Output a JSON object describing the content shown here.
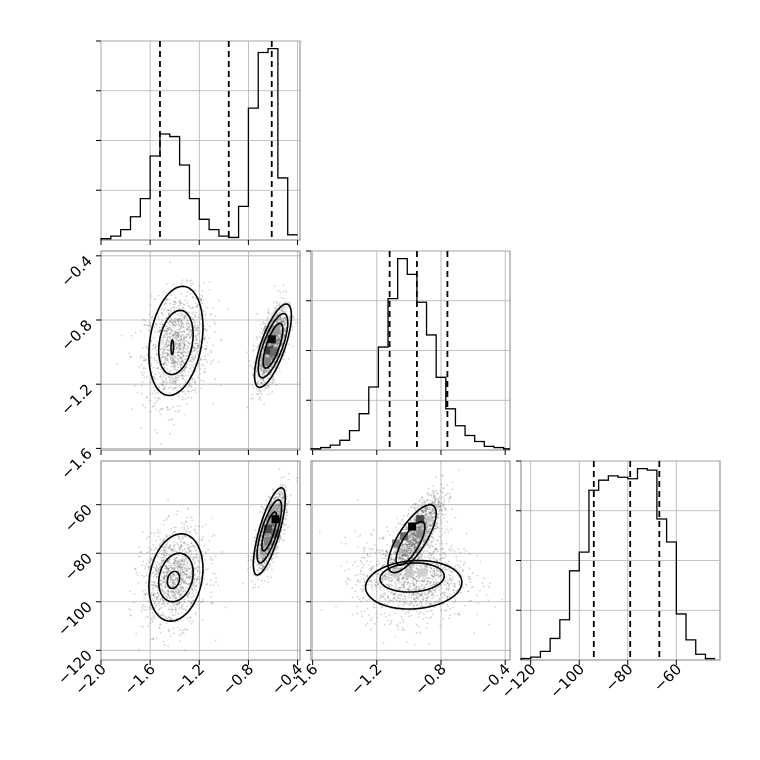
{
  "chart_data": {
    "type": "corner",
    "parameters": [
      {
        "id": "p0",
        "ticks": [
          -2.0,
          -1.6,
          -1.2,
          -0.8,
          -0.4
        ],
        "tick_labels": [
          "−2.0",
          "−1.6",
          "−1.2",
          "−0.8",
          "−0.4"
        ],
        "range": [
          -2.0,
          -0.38
        ]
      },
      {
        "id": "p1",
        "ticks": [
          -1.6,
          -1.2,
          -0.8,
          -0.4
        ],
        "tick_labels": [
          "−1.6",
          "−1.2",
          "−0.8",
          "−0.4"
        ],
        "range": [
          -1.61,
          -0.37
        ]
      },
      {
        "id": "p2",
        "ticks": [
          -120,
          -100,
          -80,
          -60
        ],
        "tick_labels": [
          "−120",
          "−100",
          "−80",
          "−60"
        ],
        "range": [
          -124,
          -42
        ]
      }
    ],
    "histograms": [
      {
        "param": "p0",
        "quantiles": [
          -1.52,
          -0.96,
          -0.61
        ],
        "edges": [
          -2.0,
          -1.92,
          -1.84,
          -1.76,
          -1.68,
          -1.6,
          -1.52,
          -1.44,
          -1.36,
          -1.28,
          -1.2,
          -1.12,
          -1.04,
          -0.96,
          -0.88,
          -0.8,
          -0.72,
          -0.64,
          -0.56,
          -0.48,
          -0.4
        ],
        "counts": [
          1,
          3,
          8,
          18,
          32,
          65,
          82,
          80,
          58,
          32,
          16,
          8,
          3,
          2,
          26,
          102,
          145,
          148,
          48,
          4
        ]
      },
      {
        "param": "p1",
        "quantiles": [
          -1.12,
          -0.95,
          -0.76
        ],
        "edges": [
          -1.61,
          -1.55,
          -1.49,
          -1.43,
          -1.37,
          -1.31,
          -1.25,
          -1.19,
          -1.13,
          -1.07,
          -1.01,
          -0.95,
          -0.89,
          -0.83,
          -0.77,
          -0.71,
          -0.65,
          -0.59,
          -0.53,
          -0.47,
          -0.41,
          -0.37
        ],
        "counts": [
          1,
          2,
          4,
          8,
          16,
          30,
          52,
          85,
          125,
          158,
          145,
          122,
          95,
          60,
          34,
          20,
          12,
          7,
          3,
          2,
          1
        ]
      },
      {
        "param": "p2",
        "quantiles": [
          -94,
          -79,
          -67
        ],
        "edges": [
          -124,
          -120,
          -116,
          -112,
          -108,
          -104,
          -100,
          -96,
          -92,
          -88,
          -84,
          -80,
          -76,
          -72,
          -68,
          -64,
          -60,
          -56,
          -52,
          -48,
          -44
        ],
        "counts": [
          1,
          2,
          6,
          15,
          28,
          62,
          75,
          118,
          125,
          128,
          127,
          126,
          133,
          132,
          98,
          82,
          32,
          14,
          4,
          1
        ]
      }
    ],
    "joint_panels": [
      {
        "x": "p0",
        "y": "p1",
        "clusters": [
          {
            "center": [
              -1.38,
              -0.97
            ],
            "spread": [
              0.13,
              0.17
            ],
            "corr": 0.2,
            "weight": 0.45
          },
          {
            "center": [
              -0.61,
              -0.96
            ],
            "spread": [
              0.06,
              0.12
            ],
            "corr": 0.6,
            "weight": 0.55
          }
        ],
        "contours": [
          {
            "center": [
              -1.39,
              -0.93
            ],
            "radii": [
              0.22,
              0.34
            ],
            "rho": 0.25
          },
          {
            "center": [
              -1.39,
              -0.94
            ],
            "radii": [
              0.14,
              0.2
            ],
            "rho": 0.25
          },
          {
            "center": [
              -1.42,
              -0.97
            ],
            "radii": [
              0.01,
              0.045
            ],
            "rho": 0.1
          },
          {
            "center": [
              -0.6,
              -0.96
            ],
            "radii": [
              0.15,
              0.26
            ],
            "rho": 0.72
          },
          {
            "center": [
              -0.6,
              -0.96
            ],
            "radii": [
              0.12,
              0.2
            ],
            "rho": 0.72
          },
          {
            "center": [
              -0.6,
              -0.96
            ],
            "radii": [
              0.08,
              0.14
            ],
            "rho": 0.72
          }
        ],
        "density_cells": [
          [
            -0.61,
            -0.92,
            0.95
          ],
          [
            -0.63,
            -0.99,
            0.75
          ],
          [
            -0.59,
            -1.0,
            0.55
          ],
          [
            -0.65,
            -1.06,
            0.45
          ],
          [
            -0.58,
            -0.86,
            0.35
          ],
          [
            -0.64,
            -0.86,
            0.25
          ]
        ]
      },
      {
        "x": "p0",
        "y": "p2",
        "clusters": [
          {
            "center": [
              -1.4,
              -90
            ],
            "spread": [
              0.13,
              10
            ],
            "corr": 0.15,
            "weight": 0.45
          },
          {
            "center": [
              -0.62,
              -71
            ],
            "spread": [
              0.06,
              8
            ],
            "corr": 0.7,
            "weight": 0.55
          }
        ],
        "contours": [
          {
            "center": [
              -1.39,
              -90
            ],
            "radii": [
              0.22,
              18
            ],
            "rho": 0.2
          },
          {
            "center": [
              -1.39,
              -90
            ],
            "radii": [
              0.14,
              10
            ],
            "rho": 0.2
          },
          {
            "center": [
              -1.41,
              -91
            ],
            "radii": [
              0.05,
              3.5
            ],
            "rho": 0.2
          },
          {
            "center": [
              -0.63,
              -71
            ],
            "radii": [
              0.13,
              18
            ],
            "rho": 0.75
          },
          {
            "center": [
              -0.63,
              -71
            ],
            "radii": [
              0.1,
              13
            ],
            "rho": 0.75
          },
          {
            "center": [
              -0.63,
              -71
            ],
            "radii": [
              0.06,
              8
            ],
            "rho": 0.75
          }
        ],
        "density_cells": [
          [
            -0.58,
            -66,
            1.0
          ],
          [
            -0.64,
            -70,
            0.7
          ],
          [
            -0.58,
            -72,
            0.55
          ],
          [
            -0.64,
            -75,
            0.45
          ],
          [
            -0.6,
            -62,
            0.3
          ]
        ]
      },
      {
        "x": "p1",
        "y": "p2",
        "clusters": [
          {
            "center": [
              -0.95,
              -72
            ],
            "spread": [
              0.08,
              8
            ],
            "corr": 0.75,
            "weight": 0.5
          },
          {
            "center": [
              -0.98,
              -90
            ],
            "spread": [
              0.17,
              9
            ],
            "corr": 0.0,
            "weight": 0.5
          }
        ],
        "contours": [
          {
            "center": [
              -0.98,
              -74
            ],
            "radii": [
              0.15,
              14
            ],
            "rho": 0.75
          },
          {
            "center": [
              -0.99,
              -76
            ],
            "radii": [
              0.09,
              9
            ],
            "rho": 0.75
          },
          {
            "center": [
              -0.97,
              -93
            ],
            "radii": [
              0.3,
              10
            ],
            "rho": 0.1
          },
          {
            "center": [
              -0.98,
              -90
            ],
            "radii": [
              0.2,
              6
            ],
            "rho": 0.1
          }
        ],
        "density_cells": [
          [
            -0.98,
            -69,
            1.0
          ],
          [
            -0.93,
            -66,
            0.7
          ],
          [
            -1.03,
            -73,
            0.55
          ],
          [
            -1.08,
            -76,
            0.45
          ],
          [
            -0.93,
            -72,
            0.4
          ],
          [
            -1.0,
            -88,
            0.15
          ],
          [
            -0.92,
            -88,
            0.12
          ],
          [
            -1.08,
            -88,
            0.12
          ]
        ]
      }
    ]
  }
}
